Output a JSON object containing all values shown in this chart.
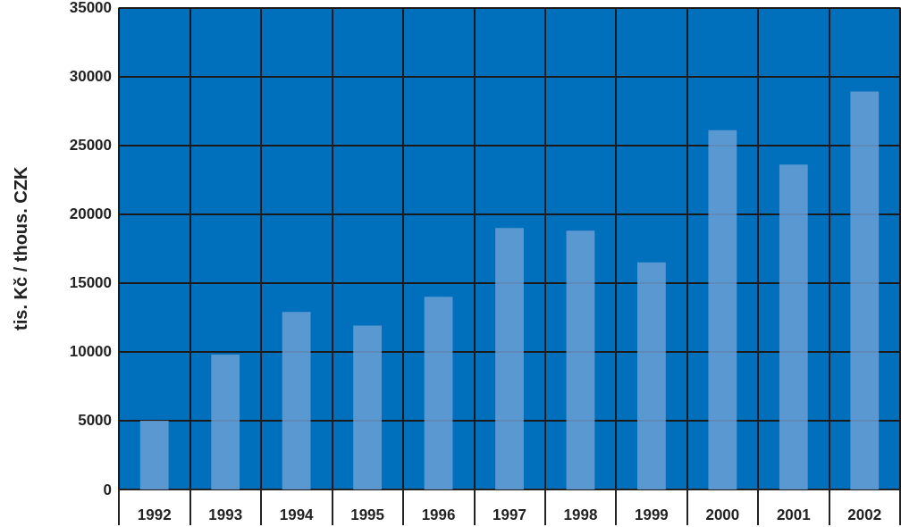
{
  "chart_data": {
    "type": "bar",
    "ylabel": "tis. Kč / thous. CZK",
    "categories": [
      "1992",
      "1993",
      "1994",
      "1995",
      "1996",
      "1997",
      "1998",
      "1999",
      "2000",
      "2001",
      "2002"
    ],
    "values": [
      5000,
      9800,
      12900,
      11900,
      14000,
      19000,
      18800,
      16500,
      26100,
      23600,
      28900
    ],
    "color": "#6a9fd6",
    "ylim": [
      0,
      35000
    ],
    "yticks": [
      0,
      5000,
      10000,
      15000,
      20000,
      25000,
      30000,
      35000
    ],
    "grid": true
  }
}
